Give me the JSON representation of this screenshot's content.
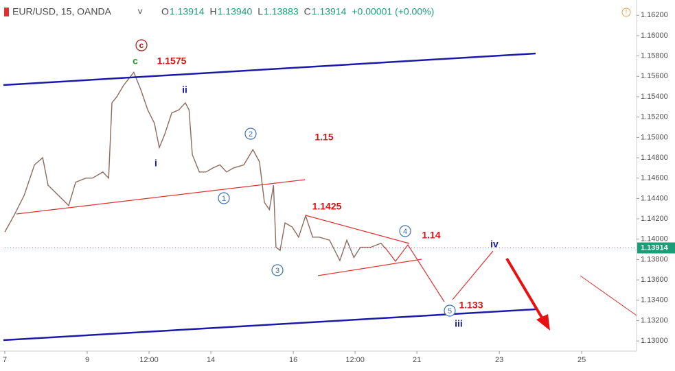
{
  "chart_data": {
    "type": "line",
    "header": {
      "symbol": "EUR/USD, 15, OANDA",
      "ohlc": [
        {
          "label": "O",
          "value": "1.13914"
        },
        {
          "label": "H",
          "value": "1.13940"
        },
        {
          "label": "L",
          "value": "1.13883"
        },
        {
          "label": "C",
          "value": "1.13914"
        }
      ],
      "change": "+0.00001 (+0.00%)"
    },
    "color": "#8c6a5e",
    "x": [
      0,
      0.22,
      0.47,
      0.72,
      0.92,
      1.05,
      1.3,
      1.55,
      1.72,
      1.97,
      2.13,
      2.38,
      2.52,
      2.6,
      2.72,
      2.88,
      3.13,
      3.3,
      3.47,
      3.63,
      3.75,
      3.88,
      4.05,
      4.22,
      4.38,
      4.47,
      4.55,
      4.72,
      4.88,
      5.05,
      5.22,
      5.38,
      5.55,
      5.8,
      6.02,
      6.18,
      6.3,
      6.42,
      6.52,
      6.58,
      6.68,
      6.8,
      6.97,
      7.13,
      7.3,
      7.47,
      7.63,
      7.88,
      8.13,
      8.3,
      8.47,
      8.63,
      8.88,
      9.13,
      9.22
    ],
    "values": [
      1.1407,
      1.1423,
      1.1443,
      1.1473,
      1.148,
      1.1453,
      1.1443,
      1.1433,
      1.1456,
      1.146,
      1.146,
      1.1466,
      1.146,
      1.1534,
      1.154,
      1.1551,
      1.1564,
      1.1547,
      1.1527,
      1.1514,
      1.149,
      1.1503,
      1.1524,
      1.1527,
      1.1534,
      1.1527,
      1.1483,
      1.1466,
      1.1466,
      1.147,
      1.1473,
      1.1466,
      1.147,
      1.1473,
      1.1488,
      1.1476,
      1.1436,
      1.1429,
      1.1453,
      1.1392,
      1.1389,
      1.1416,
      1.1412,
      1.1402,
      1.1423,
      1.1402,
      1.1402,
      1.1399,
      1.1379,
      1.1399,
      1.1382,
      1.1392,
      1.1392,
      1.1396,
      1.13914
    ],
    "xlim": [
      0,
      15.33
    ],
    "ylim": [
      1.129,
      1.1635
    ],
    "xticks": [
      {
        "value": 0,
        "label": "7"
      },
      {
        "value": 2,
        "label": "9"
      },
      {
        "value": 3.5,
        "label": "12:00"
      },
      {
        "value": 5,
        "label": "14"
      },
      {
        "value": 7,
        "label": "16"
      },
      {
        "value": 8.5,
        "label": "12:00"
      },
      {
        "value": 10,
        "label": "21"
      },
      {
        "value": 12,
        "label": "23"
      },
      {
        "value": 14,
        "label": "25"
      }
    ],
    "yticks": [
      {
        "value": 1.13,
        "label": "1.13000"
      },
      {
        "value": 1.132,
        "label": "1.13200"
      },
      {
        "value": 1.134,
        "label": "1.13400"
      },
      {
        "value": 1.136,
        "label": "1.13600"
      },
      {
        "value": 1.138,
        "label": "1.13800"
      },
      {
        "value": 1.14,
        "label": "1.14000"
      },
      {
        "value": 1.142,
        "label": "1.14200"
      },
      {
        "value": 1.144,
        "label": "1.14400"
      },
      {
        "value": 1.146,
        "label": "1.14600"
      },
      {
        "value": 1.148,
        "label": "1.14800"
      },
      {
        "value": 1.15,
        "label": "1.15000"
      },
      {
        "value": 1.152,
        "label": "1.15200"
      },
      {
        "value": 1.154,
        "label": "1.15400"
      },
      {
        "value": 1.156,
        "label": "1.15600"
      },
      {
        "value": 1.158,
        "label": "1.15800"
      },
      {
        "value": 1.16,
        "label": "1.16000"
      },
      {
        "value": 1.162,
        "label": "1.16200"
      }
    ],
    "last_price": {
      "value": 1.13914,
      "label": "1.13914"
    },
    "annotations": [
      "c",
      "c",
      "1.1575",
      "ii",
      "i",
      "2",
      "1.15",
      "1",
      "1.1425",
      "4",
      "1.14",
      "3",
      "5",
      "1.133",
      "iii",
      "iv"
    ]
  }
}
